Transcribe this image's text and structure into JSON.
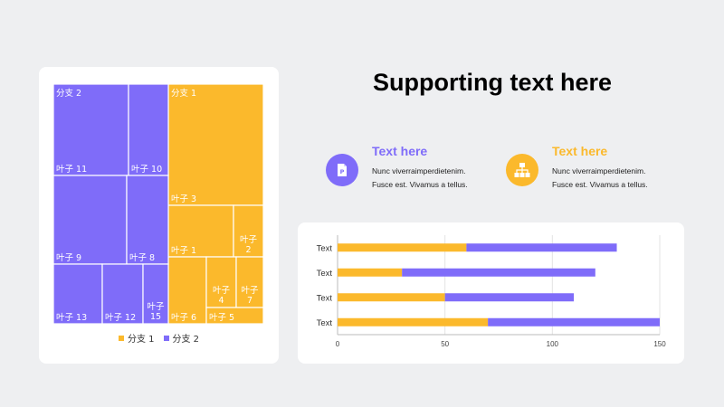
{
  "title": "Supporting text here",
  "features": [
    {
      "heading": "Text here",
      "line1": "Nunc viverraimperdietenim.",
      "line2": "Fusce est. Vivamus a tellus.",
      "color": "#7f6cf9",
      "icon": "document-icon"
    },
    {
      "heading": "Text here",
      "line1": "Nunc viverraimperdietenim.",
      "line2": "Fusce est. Vivamus a tellus.",
      "color": "#fbb92c",
      "icon": "hierarchy-icon"
    }
  ],
  "colors": {
    "orange": "#fbb92c",
    "purple": "#7f6cf9"
  },
  "chart_data": [
    {
      "type": "treemap",
      "legend": [
        "分支 1",
        "分支 2"
      ],
      "legend_position": "bottom",
      "groups": [
        {
          "name": "分支 1",
          "color": "#fbb92c",
          "leaves": [
            {
              "label": "叶子 3",
              "value": 14
            },
            {
              "label": "叶子 1",
              "value": 7
            },
            {
              "label": "叶子 2",
              "value": 4
            },
            {
              "label": "叶子 6",
              "value": 5
            },
            {
              "label": "叶子 4",
              "value": 3
            },
            {
              "label": "叶子 7",
              "value": 3
            },
            {
              "label": "叶子 5",
              "value": 2
            }
          ]
        },
        {
          "name": "分支 2",
          "color": "#7f6cf9",
          "leaves": [
            {
              "label": "叶子 11",
              "value": 14
            },
            {
              "label": "叶子 10",
              "value": 7
            },
            {
              "label": "叶子 9",
              "value": 14
            },
            {
              "label": "叶子 8",
              "value": 7
            },
            {
              "label": "叶子 13",
              "value": 8
            },
            {
              "label": "叶子 12",
              "value": 7
            },
            {
              "label": "叶子 15",
              "value": 4
            }
          ]
        }
      ]
    },
    {
      "type": "bar",
      "orientation": "horizontal",
      "stacked": true,
      "categories": [
        "Text",
        "Text",
        "Text",
        "Text"
      ],
      "series": [
        {
          "color": "#fbb92c",
          "values": [
            60,
            30,
            50,
            70
          ]
        },
        {
          "color": "#7f6cf9",
          "values": [
            70,
            90,
            60,
            80
          ]
        }
      ],
      "xlim": [
        0,
        150
      ],
      "xticks": [
        0,
        50,
        100,
        150
      ],
      "grid": true
    }
  ]
}
